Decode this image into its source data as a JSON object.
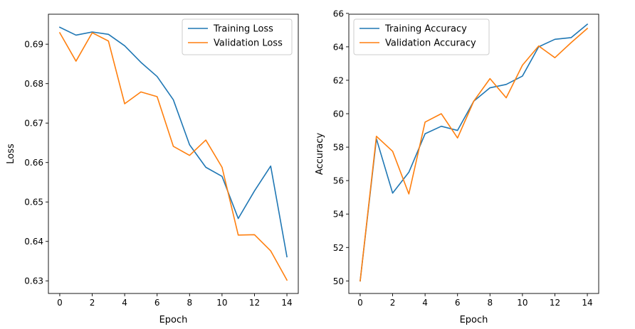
{
  "chart_data": [
    {
      "type": "line",
      "xlabel": "Epoch",
      "ylabel": "Loss",
      "xlim": [
        -0.7,
        14.7
      ],
      "ylim": [
        0.6268,
        0.6976
      ],
      "xticks": [
        0,
        2,
        4,
        6,
        8,
        10,
        12,
        14
      ],
      "yticks": [
        0.63,
        0.64,
        0.65,
        0.66,
        0.67,
        0.68,
        0.69
      ],
      "ytick_decimals": 2,
      "legend_position": "top-right",
      "grid": false,
      "x": [
        0,
        1,
        2,
        3,
        4,
        5,
        6,
        7,
        8,
        9,
        10,
        11,
        12,
        13,
        14
      ],
      "series": [
        {
          "name": "Training Loss",
          "color": "#1f77b4",
          "values": [
            0.6943,
            0.6923,
            0.6931,
            0.6925,
            0.6896,
            0.6854,
            0.6818,
            0.6759,
            0.6645,
            0.6588,
            0.6565,
            0.6458,
            0.6528,
            0.6591,
            0.6361
          ]
        },
        {
          "name": "Validation Loss",
          "color": "#ff7f0e",
          "values": [
            0.6929,
            0.6857,
            0.6929,
            0.6908,
            0.6749,
            0.6779,
            0.6767,
            0.6641,
            0.6618,
            0.6657,
            0.6588,
            0.6416,
            0.6417,
            0.6376,
            0.6302
          ]
        }
      ]
    },
    {
      "type": "line",
      "xlabel": "Epoch",
      "ylabel": "Accuracy",
      "xlim": [
        -0.7,
        14.7
      ],
      "ylim": [
        49.25,
        65.95
      ],
      "xticks": [
        0,
        2,
        4,
        6,
        8,
        10,
        12,
        14
      ],
      "yticks": [
        50,
        52,
        54,
        56,
        58,
        60,
        62,
        64,
        66
      ],
      "ytick_decimals": 0,
      "legend_position": "top-left",
      "grid": false,
      "x": [
        0,
        1,
        2,
        3,
        4,
        5,
        6,
        7,
        8,
        9,
        10,
        11,
        12,
        13,
        14
      ],
      "series": [
        {
          "name": "Training Accuracy",
          "color": "#1f77b4",
          "values": [
            50.0,
            58.5,
            55.25,
            56.5,
            58.8,
            59.25,
            59.0,
            60.75,
            61.55,
            61.75,
            62.25,
            64.0,
            64.45,
            64.55,
            65.35
          ]
        },
        {
          "name": "Validation Accuracy",
          "color": "#ff7f0e",
          "values": [
            50.0,
            58.65,
            57.75,
            55.2,
            59.5,
            60.0,
            58.55,
            60.75,
            62.1,
            60.95,
            62.9,
            64.05,
            63.35,
            64.25,
            65.1
          ]
        }
      ]
    }
  ]
}
